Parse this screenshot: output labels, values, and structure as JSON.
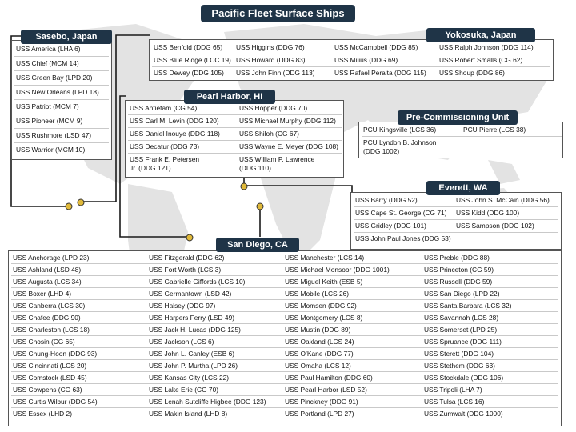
{
  "title": "Pacific Fleet Surface Ships",
  "sasebo": {
    "header": "Sasebo, Japan",
    "ships": [
      "USS America (LHA 6)",
      "USS Chief (MCM 14)",
      "USS Green Bay (LPD 20)",
      "USS New Orleans (LPD 18)",
      "USS Patriot (MCM 7)",
      "USS Pioneer (MCM 9)",
      "USS Rushmore (LSD 47)",
      "USS Warrior (MCM 10)"
    ]
  },
  "yokosuka": {
    "header": "Yokosuka, Japan",
    "ships": [
      "USS Benfold (DDG 65)",
      "USS Higgins (DDG 76)",
      "USS McCampbell (DDG 85)",
      "USS Ralph Johnson (DDG 114)",
      "USS Blue Ridge (LCC 19)",
      "USS Howard (DDG 83)",
      "USS Milius (DDG 69)",
      "USS Robert Smalls (CG 62)",
      "USS Dewey (DDG 105)",
      "USS John Finn (DDG 113)",
      "USS Rafael Peralta (DDG 115)",
      "USS Shoup (DDG 86)"
    ]
  },
  "pearl_harbor": {
    "header": "Pearl Harbor, HI",
    "ships": [
      "USS Antietam (CG 54)",
      "USS Hopper (DDG 70)",
      "USS Carl M. Levin (DDG 120)",
      "USS Michael Murphy (DDG 112)",
      "USS Daniel Inouye (DDG 118)",
      "USS Shiloh (CG 67)",
      "USS Decatur (DDG 73)",
      "USS Wayne E. Meyer (DDG 108)",
      "USS Frank E. Petersen Jr. (DDG 121)",
      "USS William P. Lawrence (DDG 110)"
    ]
  },
  "pcu": {
    "header": "Pre-Commissioning Unit",
    "ships": [
      "PCU Kingsville (LCS 36)",
      "PCU Pierre (LCS 38)",
      "PCU Lyndon B. Johnson (DDG 1002)"
    ]
  },
  "everett": {
    "header": "Everett, WA",
    "ships": [
      "USS Barry (DDG 52)",
      "USS John S. McCain (DDG 56)",
      "USS Cape St. George (CG 71)",
      "USS Kidd (DDG 100)",
      "USS Gridley (DDG 101)",
      "USS Sampson (DDG 102)",
      "USS John Paul Jones (DDG 53)"
    ]
  },
  "san_diego": {
    "header": "San Diego, CA",
    "columns": [
      [
        "USS Anchorage (LPD 23)",
        "USS Ashland (LSD 48)",
        "USS Augusta (LCS 34)",
        "USS Boxer (LHD 4)",
        "USS Canberra (LCS 30)",
        "USS Chafee (DDG 90)",
        "USS Charleston (LCS 18)",
        "USS Chosin (CG 65)",
        "USS Chung-Hoon (DDG 93)",
        "USS Cincinnati (LCS 20)",
        "USS Comstock (LSD 45)",
        "USS Cowpens (CG 63)",
        "USS Curtis Wilbur (DDG 54)",
        "USS Essex  (LHD 2)"
      ],
      [
        "USS Fitzgerald (DDG 62)",
        "USS Fort Worth (LCS 3)",
        "USS Gabrielle Giffords (LCS 10)",
        "USS Germantown (LSD 42)",
        "USS Halsey (DDG 97)",
        "USS Harpers Ferry (LSD 49)",
        "USS Jack H. Lucas (DDG 125)",
        "USS Jackson (LCS 6)",
        "USS John L. Canley (ESB 6)",
        "USS John P. Murtha (LPD 26)",
        "USS Kansas City (LCS 22)",
        "USS Lake Erie (CG 70)",
        "USS Lenah Sutcliffe Higbee (DDG 123)",
        "USS Makin Island (LHD 8)"
      ],
      [
        "USS Manchester (LCS 14)",
        "USS Michael Monsoor (DDG 1001)",
        "USS Miguel Keith (ESB 5)",
        "USS Mobile (LCS 26)",
        "USS Momsen (DDG 92)",
        "USS Montgomery (LCS 8)",
        "USS Mustin (DDG 89)",
        "USS Oakland (LCS 24)",
        "USS O’Kane (DDG 77)",
        "USS Omaha (LCS 12)",
        "USS Paul Hamilton (DDG 60)",
        "USS Pearl Harbor (LSD 52)",
        "USS Pinckney (DDG 91)",
        "USS Portland (LPD 27)"
      ],
      [
        "USS Preble (DDG 88)",
        "USS Princeton (CG 59)",
        "USS Russell (DDG 59)",
        "USS San Diego (LPD 22)",
        "USS Santa Barbara (LCS 32)",
        "USS Savannah (LCS 28)",
        "USS Somerset (LPD 25)",
        "USS Spruance (DDG 111)",
        "USS Sterett (DDG 104)",
        "USS Stethem (DDG 63)",
        "USS Stockdale (DDG 106)",
        "USS Tripoli (LHA 7)",
        "USS Tulsa (LCS 16)",
        "USS Zumwalt (DDG 1000)"
      ]
    ]
  },
  "colors": {
    "header_bg": "#1f3447",
    "marker": "#e0b93a",
    "map": "#dedede"
  }
}
